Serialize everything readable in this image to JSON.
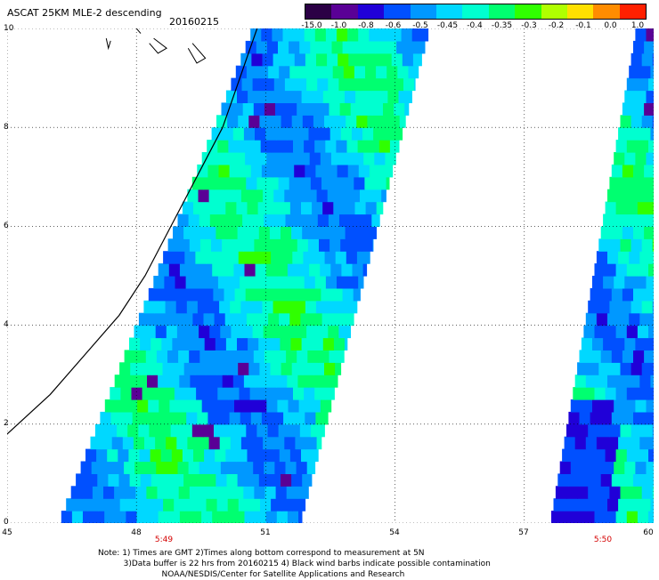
{
  "header": {
    "title": "ASCAT 25KM MLE-2 descending",
    "date": "20160215"
  },
  "legend": {
    "labels": [
      "-15.0",
      "-1.0",
      "-0.8",
      "-0.6",
      "-0.5",
      "-0.45",
      "-0.4",
      "-0.35",
      "-0.3",
      "-0.2",
      "-0.1",
      "0.0",
      "1.0"
    ],
    "colors": [
      "#2b0045",
      "#5a0096",
      "#2000d8",
      "#0050ff",
      "#0098ff",
      "#00d8ff",
      "#00ffd0",
      "#00ff70",
      "#30ff00",
      "#b0ff00",
      "#ffe000",
      "#ff8c00",
      "#ff2000"
    ]
  },
  "axes": {
    "x_ticks": [
      "45",
      "48",
      "51",
      "54",
      "57",
      "60"
    ],
    "y_ticks": [
      "10",
      "8",
      "6",
      "4",
      "2",
      "0"
    ]
  },
  "times": {
    "left": "5:49",
    "right": "5:50"
  },
  "note": {
    "line1": "Note: 1) Times are GMT 2)Times along bottom correspond to measurement at 5N",
    "line2": "3)Data buffer is 22 hrs from 20160215 4) Black wind barbs indicate possible contamination",
    "line3": "NOAA/NESDIS/Center for Satellite Applications and Research"
  },
  "map_data": {
    "lon_range": [
      45,
      60
    ],
    "lat_range": [
      0,
      10
    ],
    "grid": true,
    "swaths": [
      {
        "name": "left",
        "corners_lon_lat": [
          [
            46.2,
            0
          ],
          [
            51.8,
            0
          ],
          [
            54.8,
            10
          ],
          [
            50.7,
            10
          ]
        ]
      },
      {
        "name": "right",
        "corners_lon_lat": [
          [
            57.6,
            0
          ],
          [
            60,
            0
          ],
          [
            60,
            10
          ],
          [
            59.6,
            10
          ]
        ]
      }
    ],
    "coastline_lon_lat": [
      [
        45,
        1.8
      ],
      [
        46.0,
        2.6
      ],
      [
        46.8,
        3.4
      ],
      [
        47.6,
        4.2
      ],
      [
        48.2,
        5.0
      ],
      [
        48.8,
        6.0
      ],
      [
        49.4,
        7.0
      ],
      [
        50.0,
        8.0
      ],
      [
        50.4,
        9.0
      ],
      [
        50.6,
        9.5
      ],
      [
        50.8,
        10
      ]
    ]
  }
}
